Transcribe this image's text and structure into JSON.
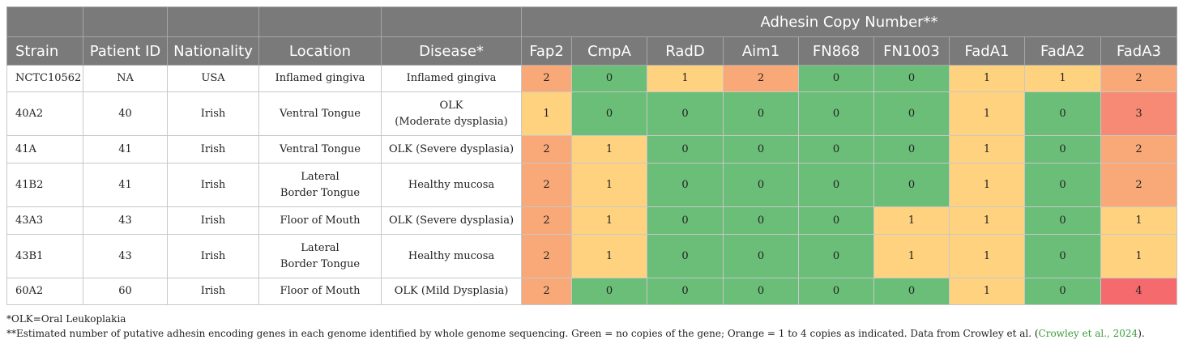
{
  "header": {
    "group_label": "Adhesin Copy Number**",
    "columns": [
      "Strain",
      "Patient ID",
      "Nationality",
      "Location",
      "Disease*",
      "Fap2",
      "CmpA",
      "RadD",
      "Aim1",
      "FN868",
      "FN1003",
      "FadA1",
      "FadA2",
      "FadA3"
    ]
  },
  "rows": [
    {
      "strain": "NCTC10562",
      "patient_id": "NA",
      "nationality": "USA",
      "location": [
        "Inflamed gingiva"
      ],
      "disease": [
        "Inflamed gingiva"
      ],
      "copies": [
        2,
        0,
        1,
        2,
        0,
        0,
        1,
        1,
        2
      ]
    },
    {
      "strain": "40A2",
      "patient_id": "40",
      "nationality": "Irish",
      "location": [
        "Ventral Tongue"
      ],
      "disease": [
        "OLK",
        "(Moderate dysplasia)"
      ],
      "copies": [
        1,
        0,
        0,
        0,
        0,
        0,
        1,
        0,
        3
      ]
    },
    {
      "strain": "41A",
      "patient_id": "41",
      "nationality": "Irish",
      "location": [
        "Ventral Tongue"
      ],
      "disease": [
        "OLK (Severe dysplasia)"
      ],
      "copies": [
        2,
        1,
        0,
        0,
        0,
        0,
        1,
        0,
        2
      ]
    },
    {
      "strain": "41B2",
      "patient_id": "41",
      "nationality": "Irish",
      "location": [
        "Lateral",
        "Border Tongue"
      ],
      "disease": [
        "Healthy mucosa"
      ],
      "copies": [
        2,
        1,
        0,
        0,
        0,
        0,
        1,
        0,
        2
      ]
    },
    {
      "strain": "43A3",
      "patient_id": "43",
      "nationality": "Irish",
      "location": [
        "Floor of Mouth"
      ],
      "disease": [
        "OLK (Severe dysplasia)"
      ],
      "copies": [
        2,
        1,
        0,
        0,
        0,
        1,
        1,
        0,
        1
      ]
    },
    {
      "strain": "43B1",
      "patient_id": "43",
      "nationality": "Irish",
      "location": [
        "Lateral",
        "Border Tongue"
      ],
      "disease": [
        "Healthy mucosa"
      ],
      "copies": [
        2,
        1,
        0,
        0,
        0,
        1,
        1,
        0,
        1
      ]
    },
    {
      "strain": "60A2",
      "patient_id": "60",
      "nationality": "Irish",
      "location": [
        "Floor of Mouth"
      ],
      "disease": [
        "OLK (Mild Dysplasia)"
      ],
      "copies": [
        2,
        0,
        0,
        0,
        0,
        0,
        1,
        0,
        4
      ]
    }
  ],
  "footnotes": {
    "note1": "*OLK=Oral Leukoplakia",
    "note2": "**Estimated number of putative adhesin encoding genes in each genome identified by whole genome sequencing. Green = no copies of the gene; Orange = 1 to 4 copies as indicated. Data from Crowley et al. (",
    "citation": "Crowley et al., 2024",
    "note2_end": ")."
  },
  "colors": {
    "header_bg": "#7a7a7a",
    "zero": "#6abe77",
    "one": "#ffd27f",
    "two": "#f8a977",
    "three": "#f78a74",
    "four": "#f56a6d",
    "citation": "#3a9a3a"
  }
}
